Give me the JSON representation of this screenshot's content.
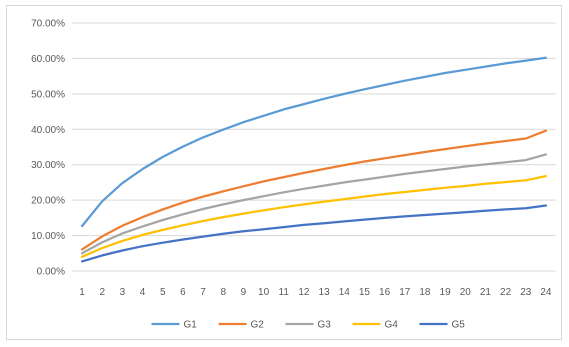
{
  "chart_data": {
    "type": "line",
    "title": "",
    "xlabel": "",
    "ylabel": "",
    "ylim": [
      0,
      0.7
    ],
    "y_ticks": [
      "0.00%",
      "10.00%",
      "20.00%",
      "30.00%",
      "40.00%",
      "50.00%",
      "60.00%",
      "70.00%"
    ],
    "y_tick_values": [
      0,
      0.1,
      0.2,
      0.3,
      0.4,
      0.5,
      0.6,
      0.7
    ],
    "categories": [
      "1",
      "2",
      "3",
      "4",
      "5",
      "6",
      "7",
      "8",
      "9",
      "10",
      "11",
      "12",
      "13",
      "14",
      "15",
      "16",
      "17",
      "18",
      "19",
      "20",
      "21",
      "22",
      "23",
      "24"
    ],
    "grid": true,
    "legend_position": "bottom",
    "series": [
      {
        "name": "G1",
        "color": "#5b9bd5",
        "values": [
          0.127,
          0.197,
          0.248,
          0.288,
          0.322,
          0.351,
          0.377,
          0.399,
          0.42,
          0.438,
          0.456,
          0.471,
          0.486,
          0.5,
          0.513,
          0.525,
          0.537,
          0.548,
          0.559,
          0.568,
          0.577,
          0.586,
          0.594,
          0.602
        ]
      },
      {
        "name": "G2",
        "color": "#ed7d31",
        "values": [
          0.061,
          0.098,
          0.128,
          0.152,
          0.174,
          0.193,
          0.21,
          0.225,
          0.239,
          0.253,
          0.265,
          0.277,
          0.288,
          0.299,
          0.309,
          0.318,
          0.327,
          0.336,
          0.344,
          0.352,
          0.36,
          0.367,
          0.374,
          0.396
        ]
      },
      {
        "name": "G3",
        "color": "#a5a5a5",
        "values": [
          0.05,
          0.081,
          0.106,
          0.126,
          0.144,
          0.16,
          0.175,
          0.188,
          0.2,
          0.211,
          0.222,
          0.232,
          0.241,
          0.25,
          0.258,
          0.266,
          0.274,
          0.281,
          0.288,
          0.295,
          0.301,
          0.307,
          0.313,
          0.329
        ]
      },
      {
        "name": "G4",
        "color": "#ffc000",
        "values": [
          0.04,
          0.065,
          0.085,
          0.102,
          0.116,
          0.129,
          0.141,
          0.152,
          0.162,
          0.171,
          0.18,
          0.188,
          0.196,
          0.203,
          0.21,
          0.217,
          0.223,
          0.229,
          0.235,
          0.24,
          0.246,
          0.251,
          0.256,
          0.268
        ]
      },
      {
        "name": "G5",
        "color": "#4472c4",
        "values": [
          0.027,
          0.044,
          0.058,
          0.07,
          0.08,
          0.089,
          0.097,
          0.105,
          0.112,
          0.118,
          0.124,
          0.13,
          0.135,
          0.14,
          0.145,
          0.15,
          0.154,
          0.158,
          0.162,
          0.166,
          0.17,
          0.174,
          0.177,
          0.185
        ]
      }
    ]
  }
}
